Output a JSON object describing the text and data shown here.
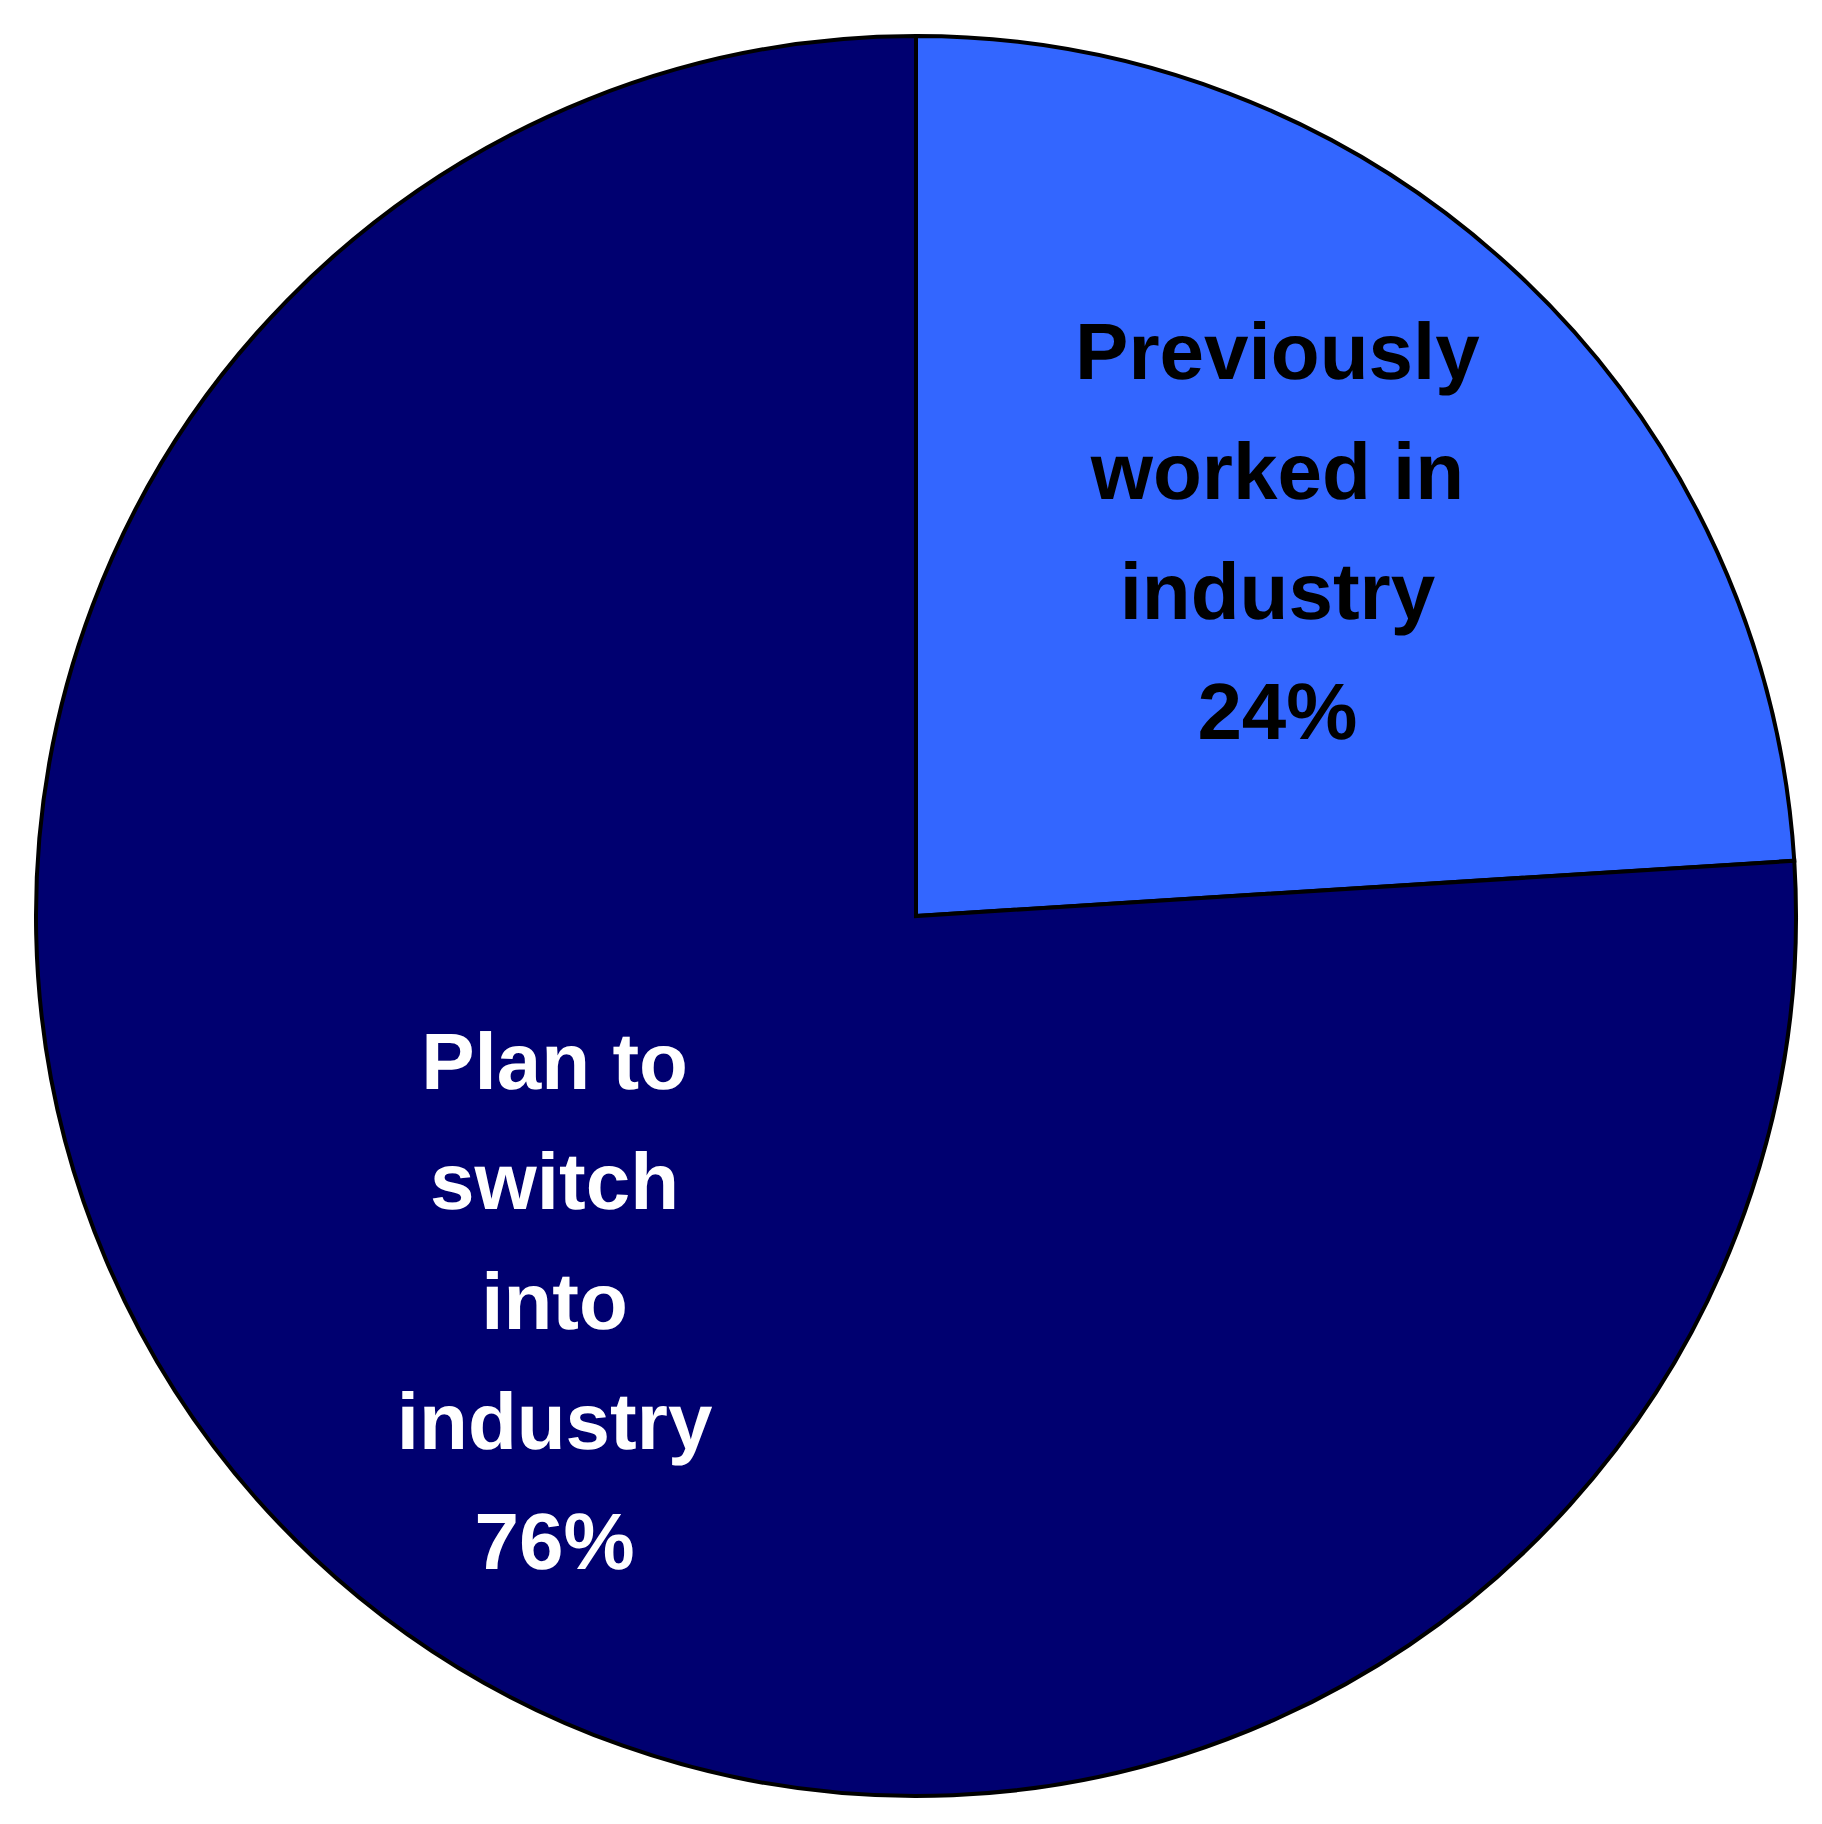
{
  "chart_data": {
    "type": "pie",
    "categories": [
      "Previously worked in industry",
      "Plan to switch into industry"
    ],
    "values": [
      24,
      76
    ],
    "colors": [
      "#3366ff",
      "#000070"
    ],
    "value_labels": [
      "24%",
      "76%"
    ]
  }
}
